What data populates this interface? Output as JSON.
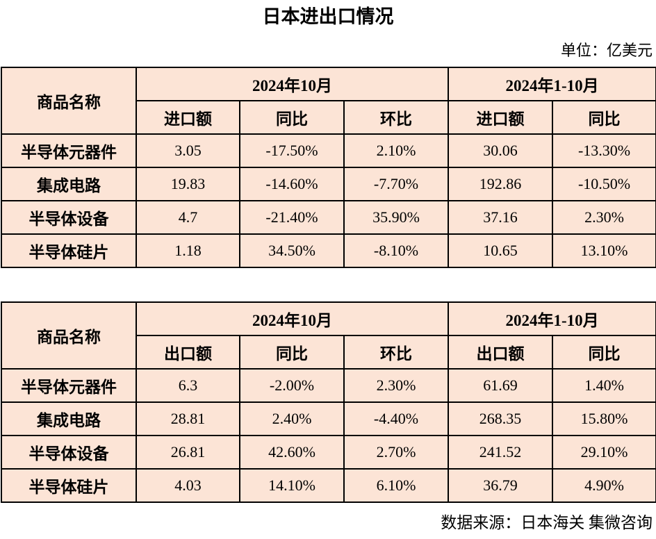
{
  "title": "日本进出口情况",
  "unit_label": "单位：亿美元",
  "source_label": "数据来源：日本海关 集微咨询",
  "colors": {
    "cell_fill": "#fce4d6",
    "border": "#000000",
    "text": "#000000",
    "page_background": "#ffffff"
  },
  "chart_data": [
    {
      "type": "table",
      "corner_header": "商品名称",
      "column_groups": [
        {
          "label": "2024年10月",
          "columns": [
            "进口额",
            "同比",
            "环比"
          ]
        },
        {
          "label": "2024年1-10月",
          "columns": [
            "进口额",
            "同比"
          ]
        }
      ],
      "rows": [
        {
          "name": "半导体元器件",
          "values": [
            "3.05",
            "-17.50%",
            "2.10%",
            "30.06",
            "-13.30%"
          ]
        },
        {
          "name": "集成电路",
          "values": [
            "19.83",
            "-14.60%",
            "-7.70%",
            "192.86",
            "-10.50%"
          ]
        },
        {
          "name": "半导体设备",
          "values": [
            "4.7",
            "-21.40%",
            "35.90%",
            "37.16",
            "2.30%"
          ]
        },
        {
          "name": "半导体硅片",
          "values": [
            "1.18",
            "34.50%",
            "-8.10%",
            "10.65",
            "13.10%"
          ]
        }
      ]
    },
    {
      "type": "table",
      "corner_header": "商品名称",
      "column_groups": [
        {
          "label": "2024年10月",
          "columns": [
            "出口额",
            "同比",
            "环比"
          ]
        },
        {
          "label": "2024年1-10月",
          "columns": [
            "出口额",
            "同比"
          ]
        }
      ],
      "rows": [
        {
          "name": "半导体元器件",
          "values": [
            "6.3",
            "-2.00%",
            "2.30%",
            "61.69",
            "1.40%"
          ]
        },
        {
          "name": "集成电路",
          "values": [
            "28.81",
            "2.40%",
            "-4.40%",
            "268.35",
            "15.80%"
          ]
        },
        {
          "name": "半导体设备",
          "values": [
            "26.81",
            "42.60%",
            "2.70%",
            "241.52",
            "29.10%"
          ]
        },
        {
          "name": "半导体硅片",
          "values": [
            "4.03",
            "14.10%",
            "6.10%",
            "36.79",
            "4.90%"
          ]
        }
      ]
    }
  ]
}
